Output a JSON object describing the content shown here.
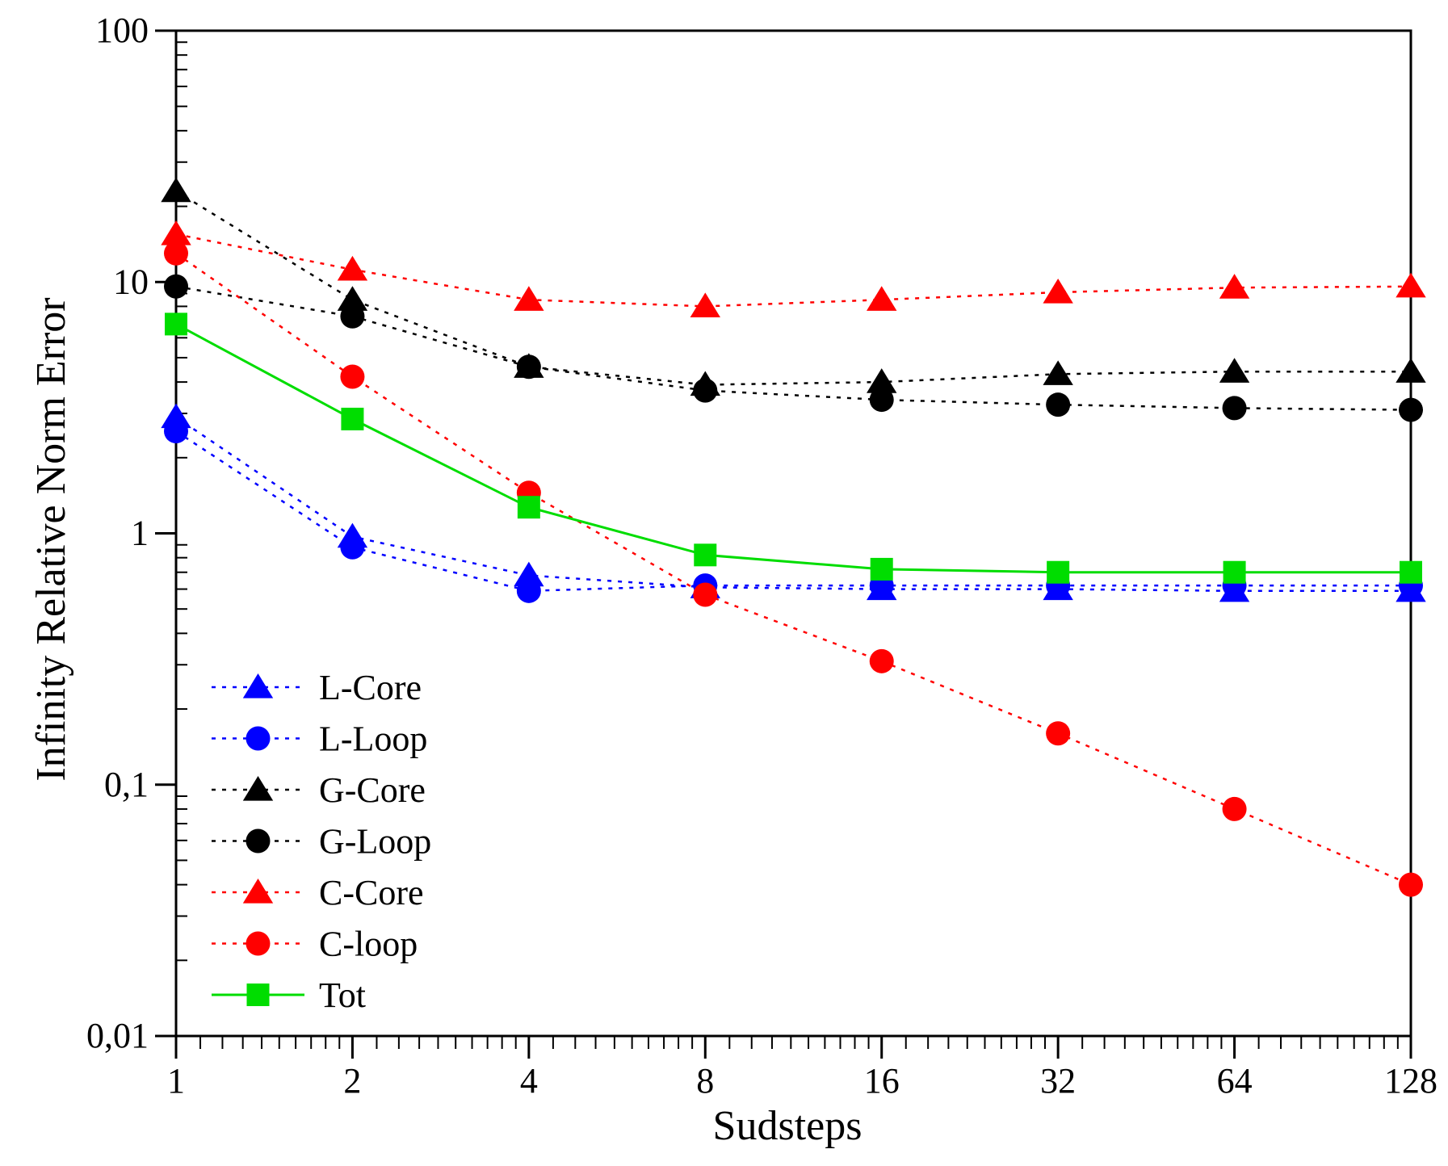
{
  "chart_data": {
    "type": "line",
    "title": "",
    "xlabel": "Sudsteps",
    "ylabel": "Infinity Relative Norm Error",
    "xscale": "log2",
    "yscale": "log10",
    "xlim": [
      1,
      128
    ],
    "ylim": [
      0.01,
      100
    ],
    "x": [
      1,
      2,
      4,
      8,
      16,
      32,
      64,
      128
    ],
    "x_tick_labels": [
      "1",
      "2",
      "4",
      "8",
      "16",
      "32",
      "64",
      "128"
    ],
    "y_ticks": [
      0.01,
      0.1,
      1,
      10,
      100
    ],
    "y_tick_labels": [
      "0,01",
      "0,1",
      "1",
      "10",
      "100"
    ],
    "grid": false,
    "legend_position": "bottom-left",
    "series": [
      {
        "name": "L-Core",
        "marker": "triangle",
        "line": "dotted",
        "color": "#0000ff",
        "values": [
          2.9,
          0.97,
          0.68,
          0.61,
          0.6,
          0.6,
          0.59,
          0.59
        ]
      },
      {
        "name": "L-Loop",
        "marker": "circle",
        "line": "dotted",
        "color": "#0000ff",
        "values": [
          2.55,
          0.88,
          0.59,
          0.62,
          0.62,
          0.62,
          0.62,
          0.62
        ]
      },
      {
        "name": "G-Core",
        "marker": "triangle",
        "line": "dotted",
        "color": "#000000",
        "values": [
          23,
          8.5,
          4.6,
          3.9,
          4.0,
          4.3,
          4.4,
          4.4
        ]
      },
      {
        "name": "G-Loop",
        "marker": "circle",
        "line": "dotted",
        "color": "#000000",
        "values": [
          9.6,
          7.3,
          4.6,
          3.7,
          3.4,
          3.25,
          3.15,
          3.1
        ]
      },
      {
        "name": "C-Core",
        "marker": "triangle",
        "line": "dotted",
        "color": "#ff0000",
        "values": [
          15.5,
          11.2,
          8.5,
          8.0,
          8.5,
          9.1,
          9.5,
          9.6
        ]
      },
      {
        "name": "C-loop",
        "marker": "circle",
        "line": "dotted",
        "color": "#ff0000",
        "values": [
          13,
          4.2,
          1.45,
          0.57,
          0.31,
          0.16,
          0.08,
          0.04
        ]
      },
      {
        "name": "Tot",
        "marker": "square",
        "line": "solid",
        "color": "#00dd00",
        "values": [
          6.8,
          2.85,
          1.27,
          0.82,
          0.72,
          0.7,
          0.7,
          0.7
        ]
      }
    ]
  }
}
